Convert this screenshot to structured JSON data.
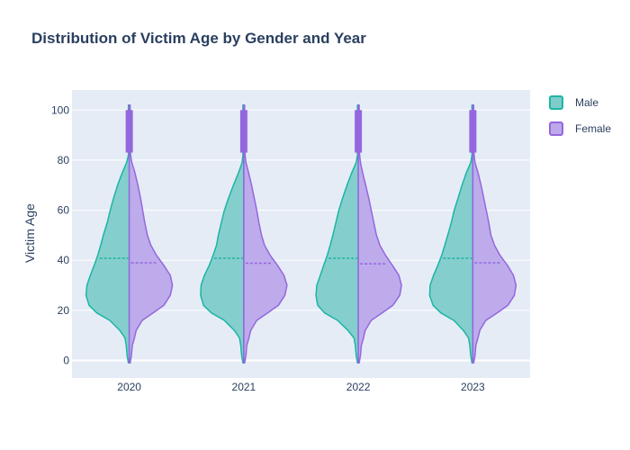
{
  "chart_data": {
    "type": "violin",
    "title": "Distribution of Victim Age by Gender and Year",
    "xlabel": "",
    "ylabel": "Victim Age",
    "categories": [
      "2020",
      "2021",
      "2022",
      "2023"
    ],
    "ylim": [
      -7,
      108
    ],
    "yticks": [
      0,
      20,
      40,
      60,
      80,
      100
    ],
    "grid": true,
    "legend_position": "top-right",
    "age_grid": [
      -1,
      2,
      6,
      9,
      12,
      16,
      19,
      22,
      26,
      30,
      34,
      38,
      42,
      46,
      50,
      55,
      60,
      65,
      70,
      75,
      79,
      82,
      85,
      90,
      95,
      100,
      102
    ],
    "series": [
      {
        "name": "Male",
        "side": "left",
        "line_color": "#1cb5a3",
        "fill_color": "#7fcccb",
        "means": [
          40.8,
          40.8,
          40.8,
          40.8
        ],
        "box_range": [
          83,
          100
        ],
        "density": [
          [
            0.02,
            0.05,
            0.07,
            0.1,
            0.22,
            0.45,
            0.75,
            0.93,
            1.0,
            0.98,
            0.9,
            0.81,
            0.73,
            0.66,
            0.6,
            0.51,
            0.44,
            0.36,
            0.27,
            0.16,
            0.06,
            0.02,
            0.02,
            0.02,
            0.02,
            0.02,
            0.02
          ],
          [
            0.02,
            0.05,
            0.07,
            0.1,
            0.22,
            0.45,
            0.75,
            0.93,
            1.0,
            0.99,
            0.91,
            0.8,
            0.71,
            0.63,
            0.59,
            0.52,
            0.45,
            0.35,
            0.24,
            0.12,
            0.04,
            0.02,
            0.02,
            0.02,
            0.02,
            0.02,
            0.02
          ],
          [
            0.02,
            0.05,
            0.07,
            0.1,
            0.24,
            0.48,
            0.78,
            0.94,
            0.98,
            0.96,
            0.88,
            0.8,
            0.72,
            0.65,
            0.59,
            0.52,
            0.45,
            0.36,
            0.26,
            0.15,
            0.05,
            0.02,
            0.02,
            0.02,
            0.02,
            0.02,
            0.02
          ],
          [
            0.02,
            0.05,
            0.07,
            0.1,
            0.22,
            0.44,
            0.74,
            0.92,
            1.0,
            0.99,
            0.91,
            0.81,
            0.72,
            0.65,
            0.58,
            0.5,
            0.43,
            0.34,
            0.25,
            0.15,
            0.05,
            0.02,
            0.02,
            0.02,
            0.02,
            0.02,
            0.02
          ]
        ]
      },
      {
        "name": "Female",
        "side": "right",
        "line_color": "#9467de",
        "fill_color": "#bca8ea",
        "means": [
          39.0,
          38.8,
          38.6,
          39.0
        ],
        "box_range": [
          83,
          100
        ],
        "density": [
          [
            0.02,
            0.05,
            0.07,
            0.12,
            0.16,
            0.3,
            0.55,
            0.8,
            0.95,
            1.0,
            0.95,
            0.8,
            0.63,
            0.5,
            0.42,
            0.36,
            0.31,
            0.26,
            0.2,
            0.13,
            0.06,
            0.03,
            0.02,
            0.02,
            0.02,
            0.02,
            0.02
          ],
          [
            0.02,
            0.05,
            0.07,
            0.12,
            0.16,
            0.3,
            0.55,
            0.8,
            0.95,
            1.0,
            0.93,
            0.78,
            0.61,
            0.48,
            0.41,
            0.35,
            0.3,
            0.24,
            0.18,
            0.11,
            0.05,
            0.03,
            0.02,
            0.02,
            0.02,
            0.02,
            0.02
          ],
          [
            0.02,
            0.05,
            0.07,
            0.12,
            0.16,
            0.3,
            0.55,
            0.8,
            0.96,
            1.0,
            0.94,
            0.79,
            0.63,
            0.5,
            0.42,
            0.36,
            0.3,
            0.24,
            0.17,
            0.1,
            0.05,
            0.03,
            0.02,
            0.02,
            0.02,
            0.02,
            0.02
          ],
          [
            0.02,
            0.05,
            0.07,
            0.12,
            0.16,
            0.3,
            0.56,
            0.81,
            0.96,
            1.0,
            0.94,
            0.8,
            0.63,
            0.5,
            0.42,
            0.37,
            0.31,
            0.25,
            0.19,
            0.12,
            0.05,
            0.03,
            0.02,
            0.02,
            0.02,
            0.02,
            0.02
          ]
        ]
      }
    ]
  }
}
